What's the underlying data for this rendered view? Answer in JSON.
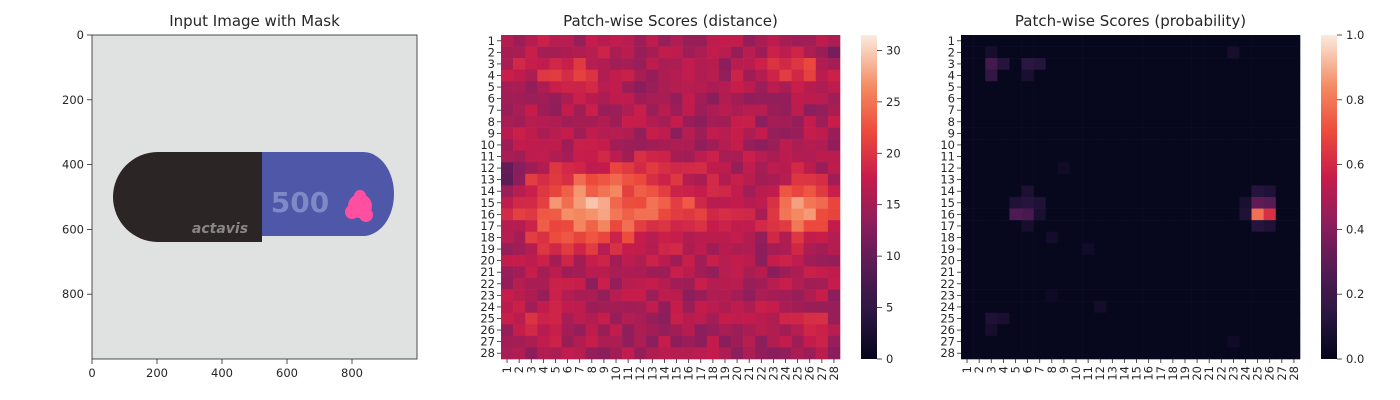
{
  "chart_data": [
    {
      "type": "image",
      "title": "Input Image with Mask",
      "x_ticks": [
        "0",
        "200",
        "400",
        "600",
        "800"
      ],
      "y_ticks": [
        "0",
        "200",
        "400",
        "600",
        "800"
      ],
      "xlim": [
        0,
        1000
      ],
      "ylim": [
        1000,
        0
      ],
      "image": {
        "background": "#dfe2e1",
        "capsule_left_color": "#2b2525",
        "capsule_right_color": "#4e57a8",
        "imprint_logo": "actavis",
        "imprint_number": "500",
        "mask_color": "#ff4fa0",
        "mask_center": [
          845,
          530
        ]
      }
    },
    {
      "type": "heatmap",
      "title": "Patch-wise Scores (distance)",
      "x_ticks": [
        "1",
        "2",
        "3",
        "4",
        "5",
        "6",
        "7",
        "8",
        "9",
        "10",
        "11",
        "12",
        "13",
        "14",
        "15",
        "16",
        "17",
        "18",
        "19",
        "20",
        "21",
        "22",
        "23",
        "24",
        "25",
        "26",
        "27",
        "28"
      ],
      "y_ticks": [
        "1",
        "2",
        "3",
        "4",
        "5",
        "6",
        "7",
        "8",
        "9",
        "10",
        "11",
        "12",
        "13",
        "14",
        "15",
        "16",
        "17",
        "18",
        "19",
        "20",
        "21",
        "22",
        "23",
        "24",
        "25",
        "26",
        "27",
        "28"
      ],
      "colorbar": {
        "min": 0,
        "max": 31.5,
        "ticks": [
          "0",
          "5",
          "10",
          "15",
          "20",
          "25",
          "30"
        ]
      },
      "colormap": "rocket",
      "generator": {
        "base": 15.5,
        "hotspots": [
          {
            "row": 3.5,
            "col": 4.5,
            "amp": 5,
            "sr": 0.9,
            "sc": 1.5
          },
          {
            "row": 3.5,
            "col": 7.5,
            "amp": 4,
            "sr": 0.9,
            "sc": 1.2
          },
          {
            "row": 3.3,
            "col": 23.5,
            "amp": 3.5,
            "sr": 1.0,
            "sc": 2.0
          },
          {
            "row": 3.5,
            "col": 26.0,
            "amp": 3.0,
            "sr": 1.0,
            "sc": 1.5
          },
          {
            "row": 15.5,
            "col": 6.5,
            "amp": 10,
            "sr": 2.2,
            "sc": 3.2
          },
          {
            "row": 15.0,
            "col": 11.5,
            "amp": 5,
            "sr": 2.4,
            "sc": 3.5
          },
          {
            "row": 15.5,
            "col": 16.0,
            "amp": 3,
            "sr": 2.0,
            "sc": 2.5
          },
          {
            "row": 15.5,
            "col": 25.5,
            "amp": 13,
            "sr": 1.7,
            "sc": 1.7
          },
          {
            "row": 25.5,
            "col": 3.5,
            "amp": 4,
            "sr": 1.0,
            "sc": 1.5
          },
          {
            "row": 25.5,
            "col": 26.0,
            "amp": 3,
            "sr": 1.0,
            "sc": 1.5
          },
          {
            "row": 12.5,
            "col": 1.0,
            "amp": -6,
            "sr": 1.0,
            "sc": 0.8
          },
          {
            "row": 2.0,
            "col": 28.0,
            "amp": -4,
            "sr": 0.8,
            "sc": 0.8
          }
        ],
        "noise": 2.5
      }
    },
    {
      "type": "heatmap",
      "title": "Patch-wise Scores (probability)",
      "x_ticks": [
        "1",
        "2",
        "3",
        "4",
        "5",
        "6",
        "7",
        "8",
        "9",
        "10",
        "11",
        "12",
        "13",
        "14",
        "15",
        "16",
        "17",
        "18",
        "19",
        "20",
        "21",
        "22",
        "23",
        "24",
        "25",
        "26",
        "27",
        "28"
      ],
      "y_ticks": [
        "1",
        "2",
        "3",
        "4",
        "5",
        "6",
        "7",
        "8",
        "9",
        "10",
        "11",
        "12",
        "13",
        "14",
        "15",
        "16",
        "17",
        "18",
        "19",
        "20",
        "21",
        "22",
        "23",
        "24",
        "25",
        "26",
        "27",
        "28"
      ],
      "colorbar": {
        "min": 0,
        "max": 1,
        "ticks": [
          "0.0",
          "0.2",
          "0.4",
          "0.6",
          "0.8",
          "1.0"
        ]
      },
      "colormap": "rocket",
      "cells": [
        {
          "row": 16,
          "col": 25,
          "value": 0.78
        },
        {
          "row": 16,
          "col": 26,
          "value": 0.62
        },
        {
          "row": 15,
          "col": 25,
          "value": 0.3
        },
        {
          "row": 15,
          "col": 26,
          "value": 0.28
        },
        {
          "row": 14,
          "col": 25,
          "value": 0.12
        },
        {
          "row": 14,
          "col": 26,
          "value": 0.1
        },
        {
          "row": 17,
          "col": 25,
          "value": 0.12
        },
        {
          "row": 17,
          "col": 26,
          "value": 0.1
        },
        {
          "row": 16,
          "col": 24,
          "value": 0.1
        },
        {
          "row": 15,
          "col": 24,
          "value": 0.08
        },
        {
          "row": 16,
          "col": 5,
          "value": 0.25
        },
        {
          "row": 16,
          "col": 6,
          "value": 0.23
        },
        {
          "row": 15,
          "col": 5,
          "value": 0.1
        },
        {
          "row": 15,
          "col": 6,
          "value": 0.12
        },
        {
          "row": 14,
          "col": 6,
          "value": 0.09
        },
        {
          "row": 15,
          "col": 7,
          "value": 0.1
        },
        {
          "row": 16,
          "col": 7,
          "value": 0.08
        },
        {
          "row": 17,
          "col": 6,
          "value": 0.07
        },
        {
          "row": 18,
          "col": 8,
          "value": 0.06
        },
        {
          "row": 3,
          "col": 3,
          "value": 0.22
        },
        {
          "row": 3,
          "col": 4,
          "value": 0.12
        },
        {
          "row": 4,
          "col": 3,
          "value": 0.16
        },
        {
          "row": 3,
          "col": 6,
          "value": 0.14
        },
        {
          "row": 3,
          "col": 7,
          "value": 0.12
        },
        {
          "row": 4,
          "col": 6,
          "value": 0.08
        },
        {
          "row": 2,
          "col": 3,
          "value": 0.07
        },
        {
          "row": 2,
          "col": 23,
          "value": 0.07
        },
        {
          "row": 25,
          "col": 3,
          "value": 0.1
        },
        {
          "row": 25,
          "col": 4,
          "value": 0.08
        },
        {
          "row": 26,
          "col": 3,
          "value": 0.07
        },
        {
          "row": 24,
          "col": 12,
          "value": 0.06
        },
        {
          "row": 12,
          "col": 9,
          "value": 0.05
        },
        {
          "row": 19,
          "col": 11,
          "value": 0.05
        },
        {
          "row": 27,
          "col": 23,
          "value": 0.05
        },
        {
          "row": 23,
          "col": 8,
          "value": 0.04
        }
      ],
      "default_value": 0.015
    }
  ]
}
